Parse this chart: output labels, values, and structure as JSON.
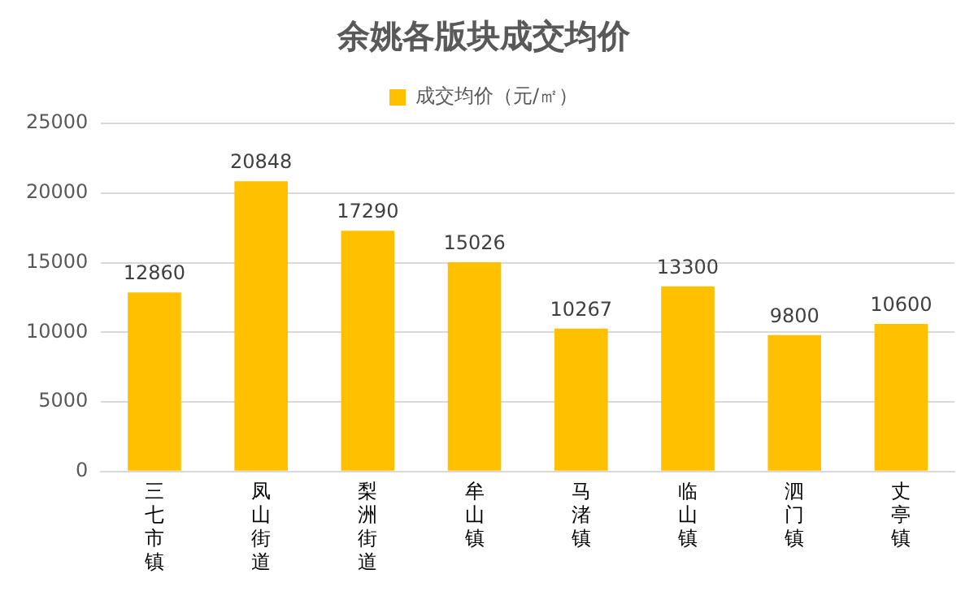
{
  "chart_data": {
    "type": "bar",
    "title": "余姚各版块成交均价",
    "categories": [
      "三七市镇",
      "凤山街道",
      "梨洲街道",
      "牟山镇",
      "马渚镇",
      "临山镇",
      "泗门镇",
      "丈亭镇"
    ],
    "series": [
      {
        "name": "成交均价（元/㎡）",
        "color": "#ffc000",
        "values": [
          12860,
          20848,
          17290,
          15026,
          10267,
          13300,
          9800,
          10600
        ]
      }
    ],
    "ylim": [
      0,
      25000
    ],
    "yticks": [
      0,
      5000,
      10000,
      15000,
      20000,
      25000
    ],
    "grid": "y",
    "legend": "top",
    "data_labels": true
  }
}
